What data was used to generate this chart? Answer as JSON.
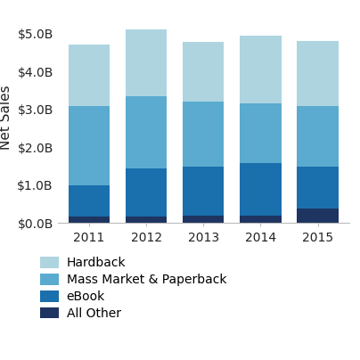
{
  "years": [
    2011,
    2012,
    2013,
    2014,
    2015
  ],
  "segments": [
    "All Other",
    "eBook",
    "Mass Market & Paperback",
    "Hardback"
  ],
  "values": {
    "All Other": [
      0.18,
      0.18,
      0.2,
      0.2,
      0.38
    ],
    "eBook": [
      0.82,
      1.27,
      1.28,
      1.38,
      1.12
    ],
    "Mass Market & Paperback": [
      2.1,
      1.9,
      1.72,
      1.58,
      1.6
    ],
    "Hardback": [
      1.6,
      1.75,
      1.58,
      1.78,
      1.7
    ]
  },
  "colors": {
    "All Other": "#1e3461",
    "eBook": "#1a6fad",
    "Mass Market & Paperback": "#5aabcf",
    "Hardback": "#aed4e0"
  },
  "ylabel": "Net Sales",
  "ylim": [
    0,
    5.6
  ],
  "yticks": [
    0.0,
    1.0,
    2.0,
    3.0,
    4.0,
    5.0
  ],
  "background_color": "#ffffff",
  "bar_width": 0.72,
  "legend_order": [
    "Hardback",
    "Mass Market & Paperback",
    "eBook",
    "All Other"
  ],
  "tick_fontsize": 10,
  "ylabel_fontsize": 11
}
